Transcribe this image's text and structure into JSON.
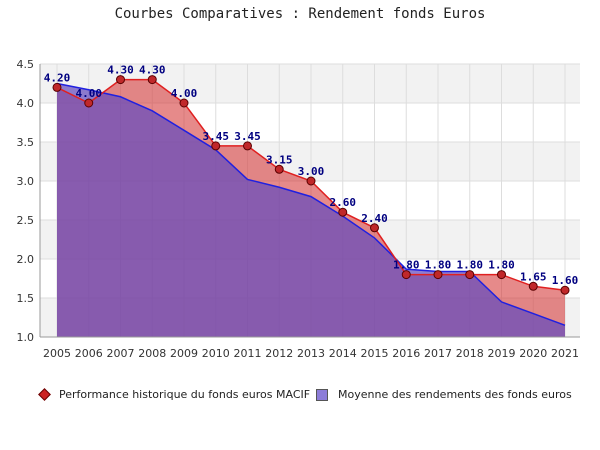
{
  "chart_data": {
    "type": "area",
    "title": "Courbes Comparatives : Rendement fonds Euros",
    "xlabel": "",
    "ylabel": "",
    "categories": [
      "2005",
      "2006",
      "2007",
      "2008",
      "2009",
      "2010",
      "2011",
      "2012",
      "2013",
      "2014",
      "2015",
      "2016",
      "2017",
      "2018",
      "2019",
      "2020",
      "2021"
    ],
    "ylim": [
      1.0,
      4.5
    ],
    "yticks": [
      "1.0",
      "1.5",
      "2.0",
      "2.5",
      "3.0",
      "3.5",
      "4.0",
      "4.5"
    ],
    "grid": "horizontal alternating bands",
    "legend_position": "bottom",
    "series": [
      {
        "name": "Performance historique du fonds euros MACIF",
        "color": "#e02020",
        "values": [
          4.2,
          4.0,
          4.3,
          4.3,
          4.0,
          3.45,
          3.45,
          3.15,
          3.0,
          2.6,
          2.4,
          1.8,
          1.8,
          1.8,
          1.8,
          1.65,
          1.6
        ],
        "labels": [
          "4.20",
          "4.00",
          "4.30",
          "4.30",
          "4.00",
          "3.45",
          "3.45",
          "3.15",
          "3.00",
          "2.60",
          "2.40",
          "1.80",
          "1.80",
          "1.80",
          "1.80",
          "1.65",
          "1.60"
        ]
      },
      {
        "name": "Moyenne des rendements des fonds euros",
        "color": "#2020e0",
        "values": [
          4.25,
          4.17,
          4.08,
          3.9,
          3.65,
          3.4,
          3.02,
          2.92,
          2.8,
          2.55,
          2.27,
          1.87,
          1.84,
          1.84,
          1.45,
          1.3,
          1.15
        ]
      }
    ]
  },
  "legend": {
    "item1": "Performance historique du fonds euros MACIF",
    "item2": "Moyenne des rendements des fonds euros"
  }
}
